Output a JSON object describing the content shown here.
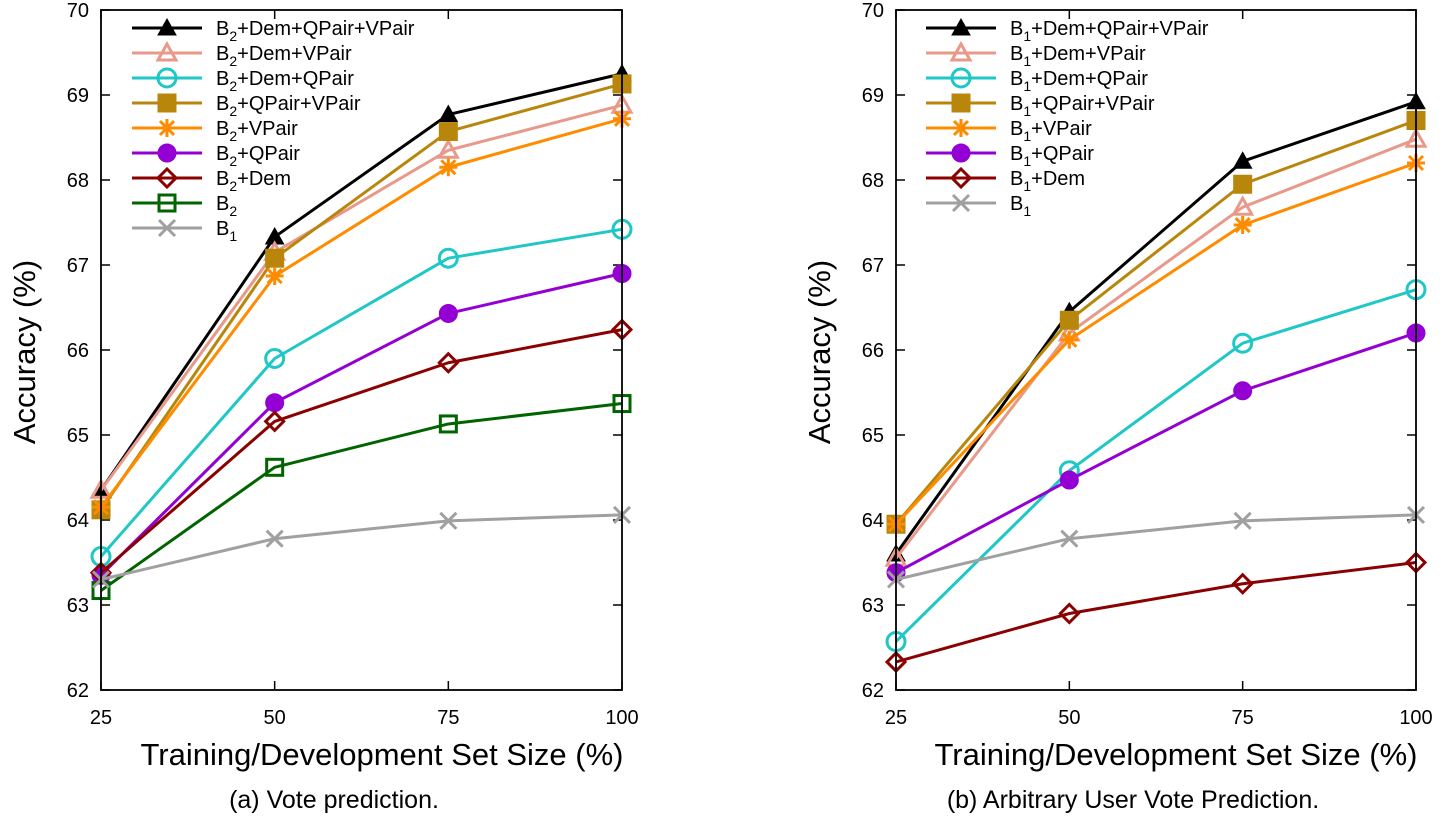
{
  "chart_data": [
    {
      "type": "line",
      "caption": "(a) Vote prediction.",
      "xlabel": "Training/Development Set Size (%)",
      "ylabel": "Accuracy (%)",
      "x": [
        25,
        50,
        75,
        100
      ],
      "xlim": [
        25,
        100
      ],
      "ylim": [
        62,
        70
      ],
      "xticks": [
        "25",
        "50",
        "75",
        "100"
      ],
      "yticks": [
        "62",
        "63",
        "64",
        "65",
        "66",
        "67",
        "68",
        "69",
        "70"
      ],
      "legend_position": "top-left",
      "series": [
        {
          "name": "B2+Dem+QPair+VPair",
          "label_parts": [
            "B",
            "2",
            "+Dem+QPair+VPair"
          ],
          "values": [
            64.35,
            67.33,
            68.77,
            69.25
          ],
          "color": "#000000",
          "marker": "triangle-filled"
        },
        {
          "name": "B2+Dem+VPair",
          "label_parts": [
            "B",
            "2",
            "+Dem+VPair"
          ],
          "values": [
            64.35,
            67.15,
            68.35,
            68.88
          ],
          "color": "#e8998a",
          "marker": "triangle-open"
        },
        {
          "name": "B2+Dem+QPair",
          "label_parts": [
            "B",
            "2",
            "+Dem+QPair"
          ],
          "values": [
            63.57,
            65.9,
            67.08,
            67.42
          ],
          "color": "#1fc7c7",
          "marker": "circle-open"
        },
        {
          "name": "B2+QPair+VPair",
          "label_parts": [
            "B",
            "2",
            "+QPair+VPair"
          ],
          "values": [
            64.12,
            67.08,
            68.57,
            69.13
          ],
          "color": "#b8860b",
          "marker": "square-filled"
        },
        {
          "name": "B2+VPair",
          "label_parts": [
            "B",
            "2",
            "+VPair"
          ],
          "values": [
            64.15,
            66.87,
            68.15,
            68.72
          ],
          "color": "#ff8c00",
          "marker": "asterisk"
        },
        {
          "name": "B2+QPair",
          "label_parts": [
            "B",
            "2",
            "+QPair"
          ],
          "values": [
            63.35,
            65.38,
            66.43,
            66.9
          ],
          "color": "#9400d3",
          "marker": "circle-filled"
        },
        {
          "name": "B2+Dem",
          "label_parts": [
            "B",
            "2",
            "+Dem"
          ],
          "values": [
            63.38,
            65.16,
            65.85,
            66.24
          ],
          "color": "#8b0000",
          "marker": "diamond-open"
        },
        {
          "name": "B2",
          "label_parts": [
            "B",
            "2",
            ""
          ],
          "values": [
            63.17,
            64.62,
            65.13,
            65.37
          ],
          "color": "#006400",
          "marker": "square-open"
        },
        {
          "name": "B1",
          "label_parts": [
            "B",
            "1",
            ""
          ],
          "values": [
            63.3,
            63.78,
            63.99,
            64.06
          ],
          "color": "#a0a0a0",
          "marker": "cross"
        }
      ]
    },
    {
      "type": "line",
      "caption": "(b) Arbitrary User Vote Prediction.",
      "xlabel": "Training/Development Set Size (%)",
      "ylabel": "Accuracy (%)",
      "x": [
        25,
        50,
        75,
        100
      ],
      "xlim": [
        25,
        100
      ],
      "ylim": [
        62,
        70
      ],
      "xticks": [
        "25",
        "50",
        "75",
        "100"
      ],
      "yticks": [
        "62",
        "63",
        "64",
        "65",
        "66",
        "67",
        "68",
        "69",
        "70"
      ],
      "legend_position": "top-left",
      "series": [
        {
          "name": "B1+Dem+QPair+VPair",
          "label_parts": [
            "B",
            "1",
            "+Dem+QPair+VPair"
          ],
          "values": [
            63.6,
            66.45,
            68.22,
            68.92
          ],
          "color": "#000000",
          "marker": "triangle-filled"
        },
        {
          "name": "B1+Dem+VPair",
          "label_parts": [
            "B",
            "1",
            "+Dem+VPair"
          ],
          "values": [
            63.55,
            66.2,
            67.68,
            68.48
          ],
          "color": "#e8998a",
          "marker": "triangle-open"
        },
        {
          "name": "B1+Dem+QPair",
          "label_parts": [
            "B",
            "1",
            "+Dem+QPair"
          ],
          "values": [
            62.57,
            64.58,
            66.08,
            66.71
          ],
          "color": "#1fc7c7",
          "marker": "circle-open"
        },
        {
          "name": "B1+QPair+VPair",
          "label_parts": [
            "B",
            "1",
            "+QPair+VPair"
          ],
          "values": [
            63.95,
            66.35,
            67.95,
            68.7
          ],
          "color": "#b8860b",
          "marker": "square-filled"
        },
        {
          "name": "B1+VPair",
          "label_parts": [
            "B",
            "1",
            "+VPair"
          ],
          "values": [
            63.95,
            66.12,
            67.47,
            68.2
          ],
          "color": "#ff8c00",
          "marker": "asterisk"
        },
        {
          "name": "B1+QPair",
          "label_parts": [
            "B",
            "1",
            "+QPair"
          ],
          "values": [
            63.38,
            64.47,
            65.52,
            66.2
          ],
          "color": "#9400d3",
          "marker": "circle-filled"
        },
        {
          "name": "B1+Dem",
          "label_parts": [
            "B",
            "1",
            "+Dem"
          ],
          "values": [
            62.33,
            62.9,
            63.25,
            63.5
          ],
          "color": "#8b0000",
          "marker": "diamond-open"
        },
        {
          "name": "B1",
          "label_parts": [
            "B",
            "1",
            ""
          ],
          "values": [
            63.3,
            63.78,
            63.99,
            64.06
          ],
          "color": "#a0a0a0",
          "marker": "cross"
        }
      ]
    }
  ]
}
